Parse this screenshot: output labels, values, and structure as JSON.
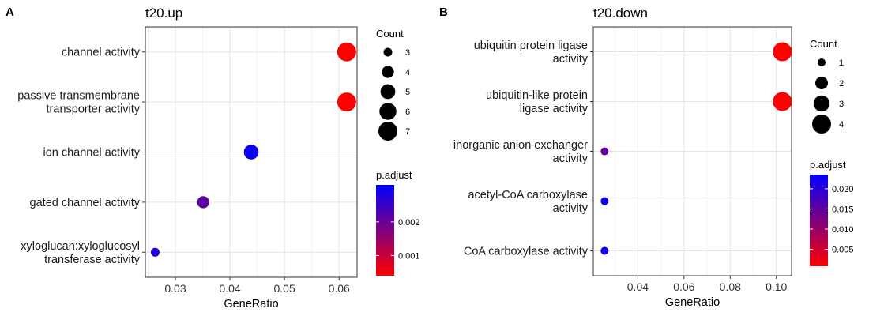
{
  "chart_data": [
    {
      "type": "scatter",
      "panel_label": "A",
      "title": "t20.up",
      "xlabel": "GeneRatio",
      "ylabel": "",
      "xlim": [
        0.0245,
        0.0633
      ],
      "xticks": [
        0.03,
        0.04,
        0.05,
        0.06
      ],
      "xtick_labels": [
        "0.03",
        "0.04",
        "0.05",
        "0.06"
      ],
      "categories": [
        [
          "channel activity"
        ],
        [
          "passive transmembrane",
          "transporter activity"
        ],
        [
          "ion channel activity"
        ],
        [
          "gated channel activity"
        ],
        [
          "xyloglucan:xyloglucosyl",
          "transferase activity"
        ]
      ],
      "points": [
        {
          "x": 0.0614,
          "count": 7,
          "p_adjust": 0.00035
        },
        {
          "x": 0.0614,
          "count": 7,
          "p_adjust": 0.00035
        },
        {
          "x": 0.0439,
          "count": 5,
          "p_adjust": 0.003
        },
        {
          "x": 0.0351,
          "count": 4,
          "p_adjust": 0.0021
        },
        {
          "x": 0.0263,
          "count": 3,
          "p_adjust": 0.0027
        }
      ],
      "size_legend": {
        "title": "Count",
        "values": [
          3,
          4,
          5,
          6,
          7
        ],
        "labels": [
          "3",
          "4",
          "5",
          "6",
          "7"
        ]
      },
      "color_legend": {
        "title": "p.adjust",
        "range": [
          0.0004,
          0.0031
        ],
        "ticks": [
          0.001,
          0.002
        ],
        "tick_labels": [
          "0.001",
          "0.002"
        ],
        "low_color": "#ff0000",
        "high_color": "#0000ff"
      },
      "grid": true,
      "legend_position": "right"
    },
    {
      "type": "scatter",
      "panel_label": "B",
      "title": "t20.down",
      "xlabel": "GeneRatio",
      "ylabel": "",
      "xlim": [
        0.0207,
        0.1066
      ],
      "xticks": [
        0.04,
        0.06,
        0.08,
        0.1
      ],
      "xtick_labels": [
        "0.04",
        "0.06",
        "0.08",
        "0.10"
      ],
      "categories": [
        [
          "ubiquitin protein ligase",
          "activity"
        ],
        [
          "ubiquitin-like protein",
          "ligase activity"
        ],
        [
          "inorganic anion exchanger",
          "activity"
        ],
        [
          "acetyl-CoA carboxylase",
          "activity"
        ],
        [
          "CoA carboxylase activity"
        ]
      ],
      "points": [
        {
          "x": 0.1026,
          "count": 4,
          "p_adjust": 0.0006
        },
        {
          "x": 0.1026,
          "count": 4,
          "p_adjust": 0.0006
        },
        {
          "x": 0.0256,
          "count": 1,
          "p_adjust": 0.0145
        },
        {
          "x": 0.0256,
          "count": 1,
          "p_adjust": 0.0225
        },
        {
          "x": 0.0256,
          "count": 1,
          "p_adjust": 0.0225
        }
      ],
      "size_legend": {
        "title": "Count",
        "values": [
          1,
          2,
          3,
          4
        ],
        "labels": [
          "1",
          "2",
          "3",
          "4"
        ]
      },
      "color_legend": {
        "title": "p.adjust",
        "range": [
          0.0008,
          0.0235
        ],
        "ticks": [
          0.005,
          0.01,
          0.015,
          0.02
        ],
        "tick_labels": [
          "0.005",
          "0.010",
          "0.015",
          "0.020"
        ],
        "low_color": "#ff0000",
        "high_color": "#0000ff"
      },
      "grid": true,
      "legend_position": "right"
    }
  ]
}
